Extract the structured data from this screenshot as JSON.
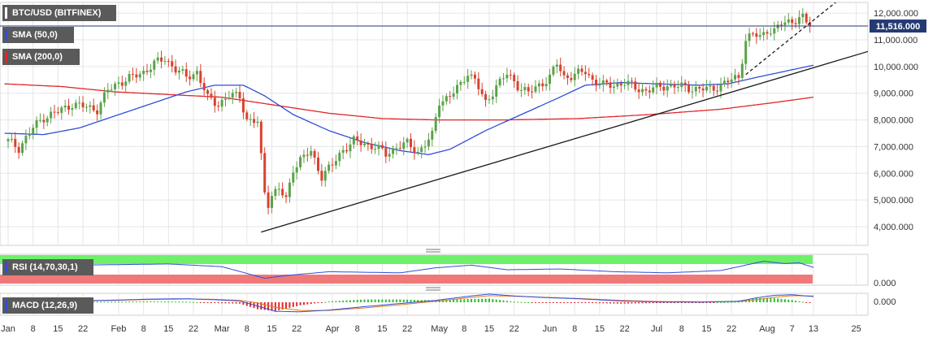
{
  "colors": {
    "background": "#ffffff",
    "grid": "#e6e6e6",
    "border": "#cfcfcf",
    "up_candle": "#5ba24a",
    "down_candle": "#d9422f",
    "sma50": "#2f4fd8",
    "sma200": "#e0262a",
    "trendline": "#1a1a1a",
    "price_line": "#243a73",
    "price_badge": "#243a73",
    "legend_bg": "#5a5a5a",
    "rsi_over": "#6ef06a",
    "rsi_under": "#f07878",
    "rsi_line": "#2f4fd8",
    "macd_line": "#2f4fd8",
    "signal_line": "#e07a20",
    "hist_pos": "#2bbf2b",
    "hist_neg": "#e0262a"
  },
  "legend": {
    "main": "BTC/USD (BITFINEX)",
    "sma50": "SMA (50,0)",
    "sma200": "SMA (200,0)",
    "rsi": "RSI (14,70,30,1)",
    "macd": "MACD (12,26,9)"
  },
  "price_badge": "11,516.000",
  "rsi_axis_label": "0.000",
  "macd_axis_label": "0.000",
  "chart_data": {
    "type": "candlestick",
    "title": "BTC/USD (BITFINEX)",
    "x_tick_labels": [
      {
        "day": 0,
        "label": "Jan"
      },
      {
        "day": 7,
        "label": "8"
      },
      {
        "day": 14,
        "label": "15"
      },
      {
        "day": 21,
        "label": "22"
      },
      {
        "day": 31,
        "label": "Feb"
      },
      {
        "day": 38,
        "label": "8"
      },
      {
        "day": 45,
        "label": "15"
      },
      {
        "day": 52,
        "label": "22"
      },
      {
        "day": 60,
        "label": "Mar"
      },
      {
        "day": 67,
        "label": "8"
      },
      {
        "day": 74,
        "label": "15"
      },
      {
        "day": 81,
        "label": "22"
      },
      {
        "day": 91,
        "label": "Apr"
      },
      {
        "day": 98,
        "label": "8"
      },
      {
        "day": 105,
        "label": "15"
      },
      {
        "day": 112,
        "label": "22"
      },
      {
        "day": 121,
        "label": "May"
      },
      {
        "day": 128,
        "label": "8"
      },
      {
        "day": 135,
        "label": "15"
      },
      {
        "day": 142,
        "label": "22"
      },
      {
        "day": 152,
        "label": "Jun"
      },
      {
        "day": 159,
        "label": "8"
      },
      {
        "day": 166,
        "label": "15"
      },
      {
        "day": 173,
        "label": "22"
      },
      {
        "day": 182,
        "label": "Jul"
      },
      {
        "day": 189,
        "label": "8"
      },
      {
        "day": 196,
        "label": "15"
      },
      {
        "day": 203,
        "label": "22"
      },
      {
        "day": 213,
        "label": "Aug"
      },
      {
        "day": 220,
        "label": "7"
      },
      {
        "day": 226,
        "label": "13"
      },
      {
        "day": 238,
        "label": "25"
      }
    ],
    "y_ticks": [
      4000,
      5000,
      6000,
      7000,
      8000,
      9000,
      10000,
      11000,
      12000
    ],
    "y_tick_labels": [
      "4,000.000",
      "5,000.000",
      "6,000.000",
      "7,000.000",
      "8,000.000",
      "9,000.000",
      "10,000.000",
      "11,000.000",
      "12,000.000"
    ],
    "ylim": [
      3300,
      12400
    ],
    "xlim": [
      -1,
      246
    ],
    "last_price": 11516,
    "close_anchors": [
      [
        0,
        7200
      ],
      [
        3,
        6950
      ],
      [
        7,
        7700
      ],
      [
        10,
        8100
      ],
      [
        14,
        8300
      ],
      [
        18,
        8600
      ],
      [
        21,
        8500
      ],
      [
        25,
        8400
      ],
      [
        28,
        9100
      ],
      [
        31,
        9400
      ],
      [
        35,
        9600
      ],
      [
        38,
        9800
      ],
      [
        41,
        10100
      ],
      [
        44,
        10300
      ],
      [
        47,
        9900
      ],
      [
        50,
        9600
      ],
      [
        53,
        9800
      ],
      [
        56,
        8800
      ],
      [
        59,
        8600
      ],
      [
        62,
        8900
      ],
      [
        65,
        8900
      ],
      [
        67,
        8000
      ],
      [
        70,
        7900
      ],
      [
        72,
        5300
      ],
      [
        73,
        4900
      ],
      [
        74,
        5200
      ],
      [
        76,
        5400
      ],
      [
        78,
        5000
      ],
      [
        80,
        6200
      ],
      [
        82,
        6500
      ],
      [
        85,
        6800
      ],
      [
        88,
        5900
      ],
      [
        91,
        6300
      ],
      [
        94,
        6900
      ],
      [
        97,
        7200
      ],
      [
        100,
        7100
      ],
      [
        103,
        7000
      ],
      [
        106,
        6700
      ],
      [
        109,
        7000
      ],
      [
        112,
        7100
      ],
      [
        115,
        6800
      ],
      [
        119,
        7400
      ],
      [
        121,
        8700
      ],
      [
        124,
        8900
      ],
      [
        127,
        9300
      ],
      [
        129,
        9800
      ],
      [
        131,
        9500
      ],
      [
        134,
        8600
      ],
      [
        137,
        9300
      ],
      [
        140,
        9700
      ],
      [
        143,
        9300
      ],
      [
        146,
        9000
      ],
      [
        149,
        9300
      ],
      [
        152,
        9600
      ],
      [
        154,
        10100
      ],
      [
        156,
        9600
      ],
      [
        159,
        9700
      ],
      [
        162,
        9800
      ],
      [
        164,
        9500
      ],
      [
        167,
        9300
      ],
      [
        170,
        9300
      ],
      [
        173,
        9400
      ],
      [
        176,
        9200
      ],
      [
        179,
        9100
      ],
      [
        182,
        9200
      ],
      [
        185,
        9300
      ],
      [
        188,
        9250
      ],
      [
        191,
        9200
      ],
      [
        194,
        9150
      ],
      [
        197,
        9150
      ],
      [
        200,
        9300
      ],
      [
        203,
        9500
      ],
      [
        205,
        9600
      ],
      [
        207,
        11000
      ],
      [
        209,
        11200
      ],
      [
        211,
        11100
      ],
      [
        213,
        11400
      ],
      [
        215,
        11300
      ],
      [
        217,
        11600
      ],
      [
        219,
        11700
      ],
      [
        221,
        11750
      ],
      [
        223,
        11800
      ],
      [
        225,
        11516
      ]
    ],
    "trendlines": [
      {
        "style": "solid",
        "from": [
          71,
          3800
        ],
        "to": [
          246,
          10750
        ]
      },
      {
        "style": "dashed",
        "from": [
          207,
          9700
        ],
        "to": [
          235,
          12700
        ]
      }
    ],
    "series": [
      {
        "name": "SMA (50,0)",
        "type": "line",
        "anchors": [
          [
            -1,
            7500
          ],
          [
            10,
            7450
          ],
          [
            20,
            7700
          ],
          [
            30,
            8150
          ],
          [
            40,
            8600
          ],
          [
            50,
            9050
          ],
          [
            58,
            9300
          ],
          [
            66,
            9300
          ],
          [
            72,
            8900
          ],
          [
            80,
            8200
          ],
          [
            90,
            7600
          ],
          [
            100,
            7150
          ],
          [
            110,
            6850
          ],
          [
            118,
            6700
          ],
          [
            124,
            6900
          ],
          [
            134,
            7600
          ],
          [
            144,
            8200
          ],
          [
            154,
            8800
          ],
          [
            162,
            9300
          ],
          [
            172,
            9400
          ],
          [
            182,
            9350
          ],
          [
            194,
            9300
          ],
          [
            202,
            9350
          ],
          [
            212,
            9650
          ],
          [
            226,
            10050
          ]
        ]
      },
      {
        "name": "SMA (200,0)",
        "type": "line",
        "anchors": [
          [
            -1,
            9350
          ],
          [
            15,
            9250
          ],
          [
            30,
            9050
          ],
          [
            45,
            8950
          ],
          [
            60,
            8850
          ],
          [
            75,
            8550
          ],
          [
            90,
            8250
          ],
          [
            105,
            8050
          ],
          [
            120,
            8000
          ],
          [
            140,
            8000
          ],
          [
            160,
            8050
          ],
          [
            180,
            8200
          ],
          [
            200,
            8400
          ],
          [
            215,
            8650
          ],
          [
            226,
            8850
          ]
        ]
      }
    ],
    "rsi": {
      "name": "RSI (14,70,30,1)",
      "upper": 70,
      "lower": 30,
      "anchors": [
        [
          -1,
          70
        ],
        [
          20,
          72
        ],
        [
          45,
          75
        ],
        [
          60,
          68
        ],
        [
          72,
          38
        ],
        [
          78,
          45
        ],
        [
          90,
          55
        ],
        [
          110,
          52
        ],
        [
          120,
          65
        ],
        [
          130,
          72
        ],
        [
          140,
          60
        ],
        [
          155,
          62
        ],
        [
          170,
          55
        ],
        [
          185,
          52
        ],
        [
          200,
          58
        ],
        [
          207,
          72
        ],
        [
          212,
          82
        ],
        [
          218,
          76
        ],
        [
          222,
          78
        ],
        [
          226,
          66
        ]
      ]
    },
    "macd": {
      "name": "MACD (12,26,9)",
      "macd_anchors": [
        [
          -1,
          30
        ],
        [
          10,
          60
        ],
        [
          20,
          120
        ],
        [
          30,
          170
        ],
        [
          40,
          250
        ],
        [
          50,
          280
        ],
        [
          58,
          200
        ],
        [
          65,
          100
        ],
        [
          70,
          -300
        ],
        [
          75,
          -720
        ],
        [
          82,
          -760
        ],
        [
          90,
          -620
        ],
        [
          100,
          -350
        ],
        [
          110,
          -100
        ],
        [
          120,
          150
        ],
        [
          130,
          500
        ],
        [
          135,
          650
        ],
        [
          142,
          500
        ],
        [
          150,
          380
        ],
        [
          160,
          280
        ],
        [
          172,
          100
        ],
        [
          182,
          30
        ],
        [
          195,
          20
        ],
        [
          205,
          80
        ],
        [
          210,
          350
        ],
        [
          215,
          550
        ],
        [
          220,
          600
        ],
        [
          226,
          450
        ]
      ],
      "signal_anchors": [
        [
          -1,
          20
        ],
        [
          10,
          50
        ],
        [
          20,
          100
        ],
        [
          30,
          150
        ],
        [
          40,
          220
        ],
        [
          50,
          260
        ],
        [
          58,
          230
        ],
        [
          65,
          150
        ],
        [
          70,
          -50
        ],
        [
          75,
          -400
        ],
        [
          82,
          -650
        ],
        [
          90,
          -650
        ],
        [
          100,
          -450
        ],
        [
          110,
          -200
        ],
        [
          120,
          80
        ],
        [
          130,
          380
        ],
        [
          135,
          520
        ],
        [
          142,
          480
        ],
        [
          150,
          400
        ],
        [
          160,
          300
        ],
        [
          172,
          150
        ],
        [
          182,
          60
        ],
        [
          195,
          30
        ],
        [
          205,
          60
        ],
        [
          210,
          200
        ],
        [
          215,
          400
        ],
        [
          220,
          520
        ],
        [
          226,
          500
        ]
      ]
    }
  }
}
